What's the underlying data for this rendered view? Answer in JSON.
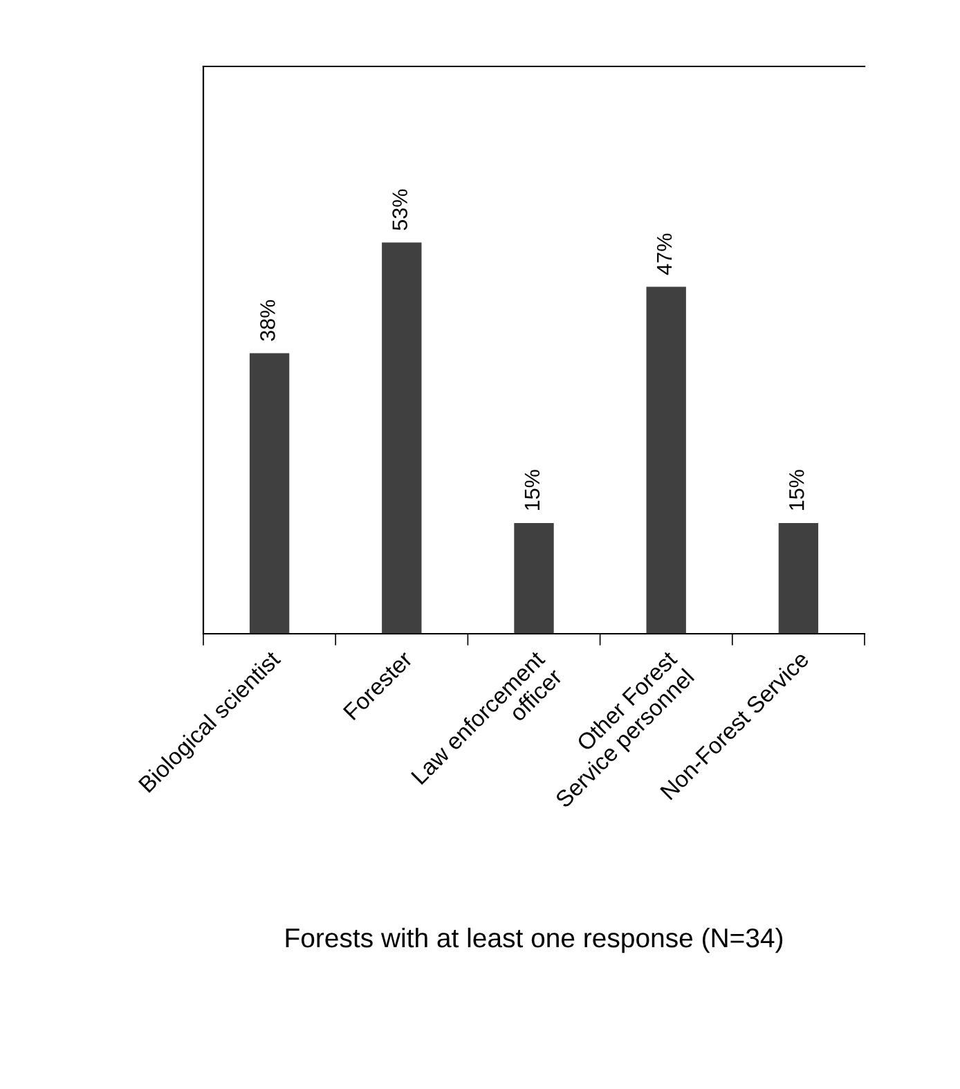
{
  "chart_data": {
    "type": "bar",
    "categories": [
      "Biological scientist",
      "Forester",
      "Law enforcement\nofficer",
      "Other Forest\nService personnel",
      "Non-Forest Service"
    ],
    "values": [
      38,
      53,
      15,
      47,
      15
    ],
    "value_labels": [
      "38%",
      "53%",
      "15%",
      "47%",
      "15%"
    ],
    "color": "#404040",
    "xlabel": "Forests with at least one response (N=34)",
    "tick_labels": "x",
    "grid": false,
    "legend": false
  }
}
